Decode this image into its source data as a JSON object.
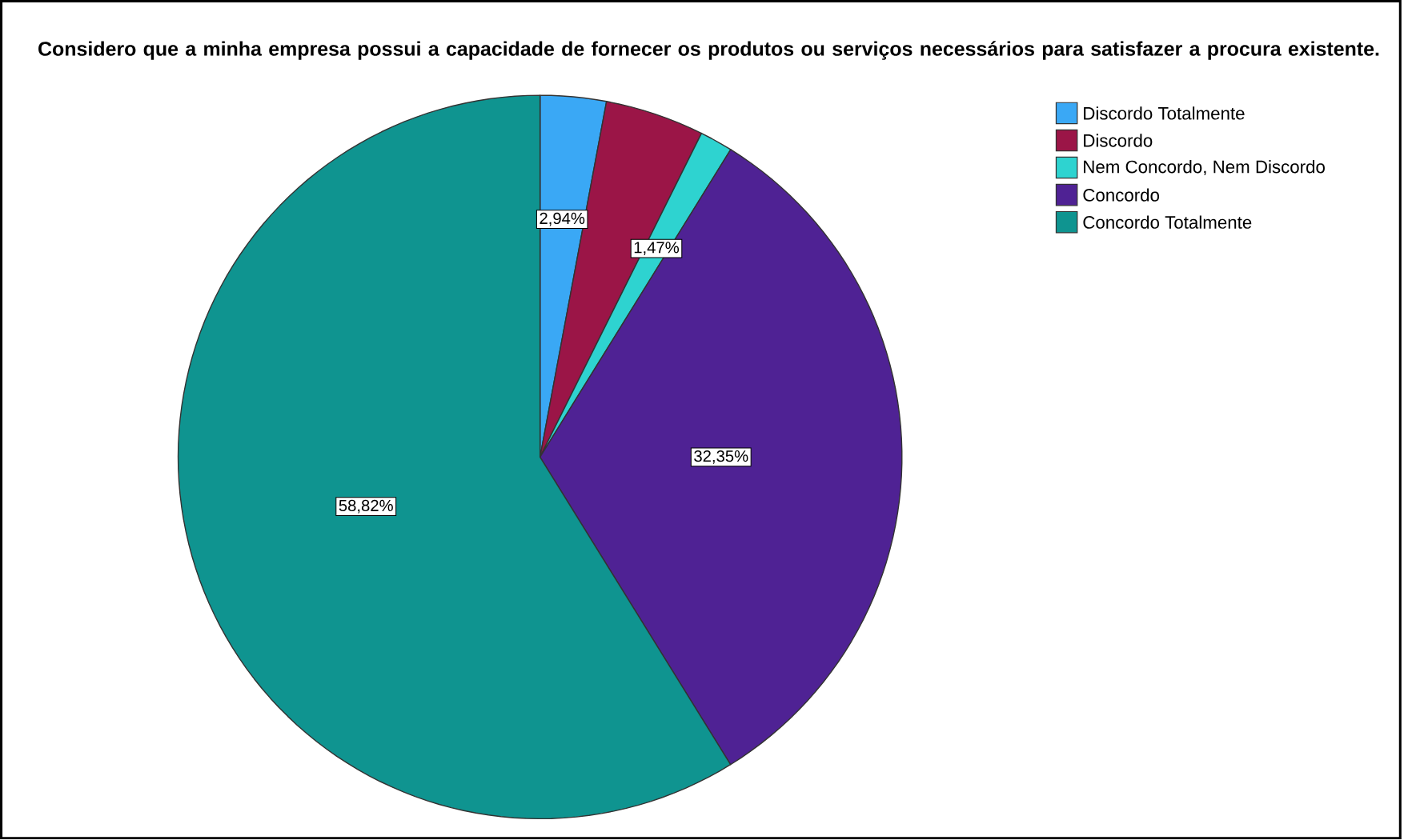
{
  "chart_data": {
    "type": "pie",
    "title": "Considero que a minha empresa possui a capacidade de fornecer os produtos ou serviços necessários para satisfazer a procura existente.",
    "categories": [
      "Discordo Totalmente",
      "Discordo",
      "Nem Concordo, Nem Discordo",
      "Concordo",
      "Concordo Totalmente"
    ],
    "values": [
      2.94,
      4.42,
      1.47,
      32.35,
      58.82
    ],
    "value_labels": [
      "2,94%",
      null,
      "1,47%",
      "32,35%",
      "58,82%"
    ],
    "colors": [
      "#3aa8f5",
      "#9b1547",
      "#2ed3d0",
      "#4f2294",
      "#0f9490"
    ],
    "legend": "top right"
  }
}
